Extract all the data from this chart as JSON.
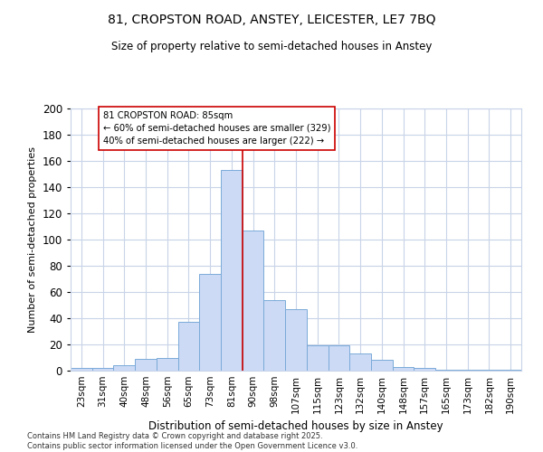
{
  "title1": "81, CROPSTON ROAD, ANSTEY, LEICESTER, LE7 7BQ",
  "title2": "Size of property relative to semi-detached houses in Anstey",
  "xlabel": "Distribution of semi-detached houses by size in Anstey",
  "ylabel": "Number of semi-detached properties",
  "bin_labels": [
    "23sqm",
    "31sqm",
    "40sqm",
    "48sqm",
    "56sqm",
    "65sqm",
    "73sqm",
    "81sqm",
    "90sqm",
    "98sqm",
    "107sqm",
    "115sqm",
    "123sqm",
    "132sqm",
    "140sqm",
    "148sqm",
    "157sqm",
    "165sqm",
    "173sqm",
    "182sqm",
    "190sqm"
  ],
  "bar_heights": [
    2,
    2,
    4,
    9,
    10,
    37,
    74,
    153,
    107,
    54,
    47,
    19,
    19,
    13,
    8,
    3,
    2,
    1,
    1,
    1,
    1
  ],
  "bar_color": "#ccdaf5",
  "bar_edge_color": "#7aaad8",
  "vline_color": "#cc0000",
  "annotation_title": "81 CROPSTON ROAD: 85sqm",
  "annotation_line1": "← 60% of semi-detached houses are smaller (329)",
  "annotation_line2": "40% of semi-detached houses are larger (222) →",
  "annotation_box_color": "#ffffff",
  "annotation_box_edge": "#cc0000",
  "ylim": [
    0,
    200
  ],
  "yticks": [
    0,
    20,
    40,
    60,
    80,
    100,
    120,
    140,
    160,
    180,
    200
  ],
  "grid_color": "#c8d4e8",
  "footer1": "Contains HM Land Registry data © Crown copyright and database right 2025.",
  "footer2": "Contains public sector information licensed under the Open Government Licence v3.0.",
  "bg_color": "#ffffff"
}
